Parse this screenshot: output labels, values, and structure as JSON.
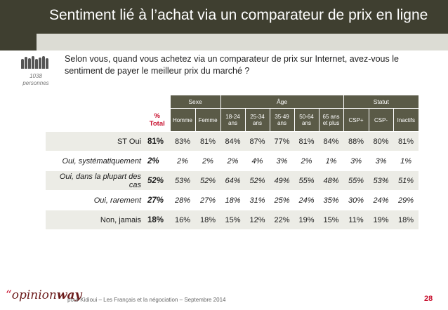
{
  "title": "Sentiment lié à l’achat via un comparateur de prix en ligne",
  "question": "Selon vous, quand vous achetez via un comparateur de prix sur Internet, avez-vous le sentiment de payer le meilleur prix du marché ?",
  "respondents": {
    "count": "1038",
    "label": "personnes"
  },
  "table": {
    "groups": [
      "Sexe",
      "Âge",
      "Statut"
    ],
    "total_header_line1": "%",
    "total_header_line2": "Total",
    "columns": [
      {
        "l1": "Homme",
        "l2": ""
      },
      {
        "l1": "Femme",
        "l2": ""
      },
      {
        "l1": "18-24",
        "l2": "ans"
      },
      {
        "l1": "25-34",
        "l2": "ans"
      },
      {
        "l1": "35-49",
        "l2": "ans"
      },
      {
        "l1": "50-64",
        "l2": "ans"
      },
      {
        "l1": "65 ans",
        "l2": "et plus"
      },
      {
        "l1": "CSP+",
        "l2": ""
      },
      {
        "l1": "CSP-",
        "l2": ""
      },
      {
        "l1": "Inactifs",
        "l2": ""
      }
    ],
    "rows": [
      {
        "label": "ST Oui",
        "total": "81%",
        "values": [
          "83%",
          "81%",
          "84%",
          "87%",
          "77%",
          "81%",
          "84%",
          "88%",
          "80%",
          "81%"
        ]
      },
      {
        "label": "Oui, systématiquement",
        "total": "2%",
        "values": [
          "2%",
          "2%",
          "2%",
          "4%",
          "3%",
          "2%",
          "1%",
          "3%",
          "3%",
          "1%"
        ]
      },
      {
        "label": "Oui, dans la plupart des cas",
        "total": "52%",
        "values": [
          "53%",
          "52%",
          "64%",
          "52%",
          "49%",
          "55%",
          "48%",
          "55%",
          "53%",
          "51%"
        ]
      },
      {
        "label": "Oui, rarement",
        "total": "27%",
        "values": [
          "28%",
          "27%",
          "18%",
          "31%",
          "25%",
          "24%",
          "35%",
          "30%",
          "24%",
          "29%"
        ]
      },
      {
        "label": "Non, jamais",
        "total": "18%",
        "values": [
          "16%",
          "18%",
          "15%",
          "12%",
          "22%",
          "19%",
          "15%",
          "11%",
          "19%",
          "18%"
        ]
      }
    ]
  },
  "footer": {
    "logo_quote": "“",
    "logo_opinion": "opinion",
    "logo_way": "way",
    "text": "pour Kidioui – Les Français et la négociation – Septembre 2014",
    "page": "28"
  },
  "colors": {
    "header_bg": "#3f3f30",
    "table_header": "#5a5a47",
    "accent": "#c8102e",
    "stripe": "#ecece6"
  }
}
